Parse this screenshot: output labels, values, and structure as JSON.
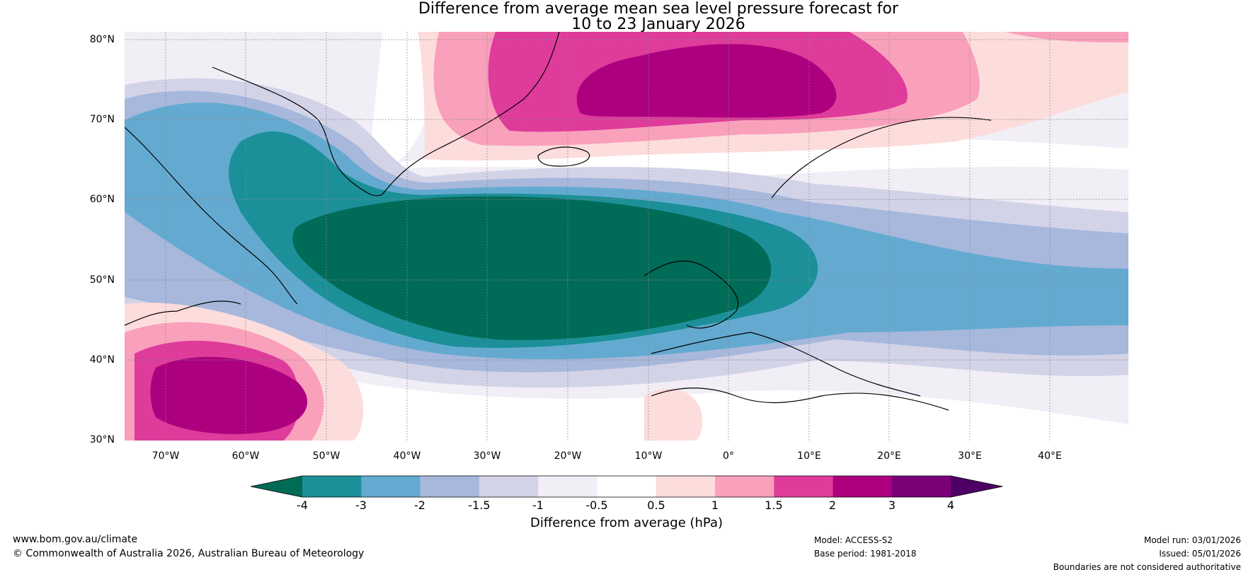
{
  "title": {
    "line1": "Difference from average mean sea level pressure forecast for",
    "line2": "10 to 23 January 2026"
  },
  "map": {
    "lat_labels": [
      "80°N",
      "70°N",
      "60°N",
      "50°N",
      "40°N",
      "30°N"
    ],
    "lon_labels": [
      "70°W",
      "60°W",
      "50°W",
      "40°W",
      "30°W",
      "20°W",
      "10°W",
      "0°",
      "10°E",
      "20°E",
      "30°E",
      "40°E"
    ]
  },
  "colorbar": {
    "ticks": [
      "-4",
      "-3",
      "-2",
      "-1.5",
      "-1",
      "-0.5",
      "0.5",
      "1",
      "1.5",
      "2",
      "3",
      "4"
    ],
    "colors": [
      "#006b57",
      "#1b9099",
      "#64aad0",
      "#a7b8dc",
      "#d3d3e8",
      "#f1eef6",
      "#ffffff",
      "#fddcdc",
      "#f9a0bb",
      "#de3b9b",
      "#ad007e",
      "#7a0177"
    ],
    "under_color": "#006b57",
    "over_color": "#4d0065",
    "label": "Difference from average (hPa)"
  },
  "footer": {
    "website": "www.bom.gov.au/climate",
    "copyright": "© Commonwealth of Australia 2026, Australian Bureau of Meteorology",
    "model": "Model: ACCESS-S2",
    "base_period": "Base period: 1981-2018",
    "model_run": "Model run: 03/01/2026",
    "issued": "Issued: 05/01/2026",
    "disclaimer": "Boundaries are not considered authoritative"
  }
}
